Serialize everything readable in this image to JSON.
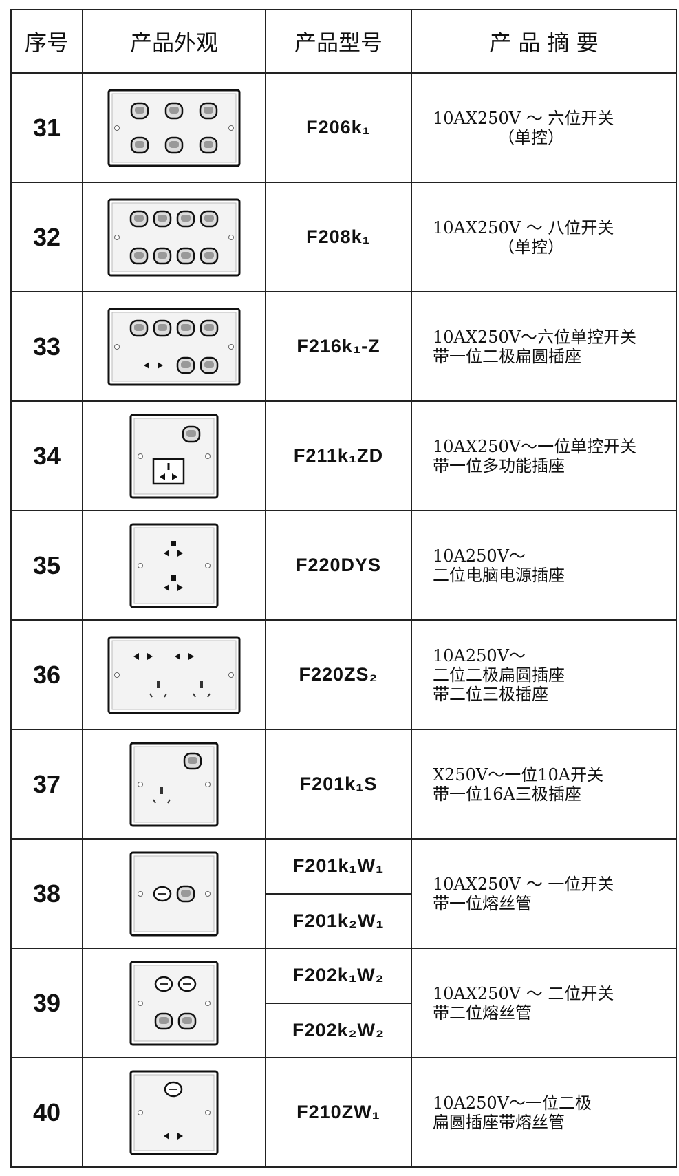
{
  "table": {
    "header": [
      "序号",
      "产品外观",
      "产品型号",
      "产 品 摘 要"
    ],
    "rows": [
      {
        "no": "31",
        "models": [
          "F206k₁"
        ],
        "summary": [
          "10AX250V ～ 六位开关",
          "（单控）"
        ]
      },
      {
        "no": "32",
        "models": [
          "F208k₁"
        ],
        "summary": [
          "10AX250V ～ 八位开关",
          "（单控）"
        ]
      },
      {
        "no": "33",
        "models": [
          "F216k₁-Z"
        ],
        "summary": [
          "10AX250V～六位单控开关",
          "带一位二极扁圆插座"
        ]
      },
      {
        "no": "34",
        "models": [
          "F211k₁ZD"
        ],
        "summary": [
          "10AX250V～一位单控开关",
          "带一位多功能插座"
        ]
      },
      {
        "no": "35",
        "models": [
          "F220DYS"
        ],
        "summary": [
          "10A250V～",
          "二位电脑电源插座"
        ]
      },
      {
        "no": "36",
        "models": [
          "F220ZS₂"
        ],
        "summary": [
          "10A250V～",
          "二位二极扁圆插座",
          "带二位三极插座"
        ]
      },
      {
        "no": "37",
        "models": [
          "F201k₁S"
        ],
        "summary": [
          "X250V～一位10A开关",
          "带一位16A三极插座"
        ]
      },
      {
        "no": "38",
        "models": [
          "F201k₁W₁",
          "F201k₂W₁"
        ],
        "summary": [
          "10AX250V ～ 一位开关",
          "带一位熔丝管"
        ]
      },
      {
        "no": "39",
        "models": [
          "F202k₁W₂",
          "F202k₂W₂"
        ],
        "summary": [
          "10AX250V ～ 二位开关",
          "带二位熔丝管"
        ]
      },
      {
        "no": "40",
        "models": [
          "F210ZW₁"
        ],
        "summary": [
          "10A250V～一位二极",
          "扁圆插座带熔丝管"
        ]
      }
    ]
  }
}
